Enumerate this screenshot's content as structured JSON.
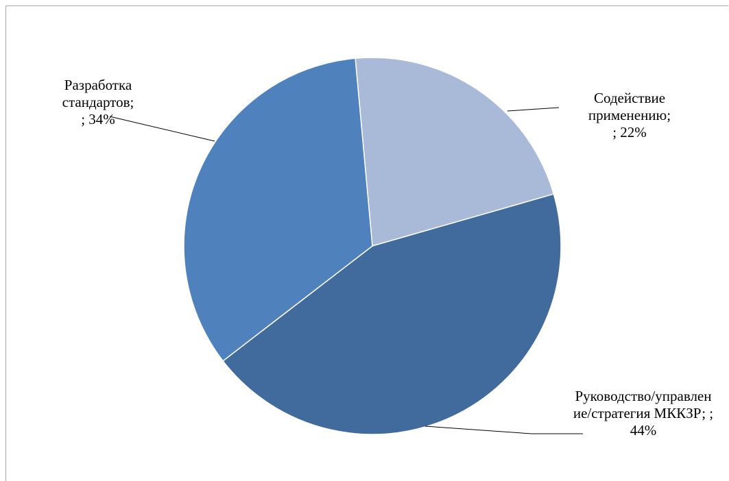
{
  "chart_data": {
    "type": "pie",
    "slices": [
      {
        "label_lines": [
          "Содействие",
          "применению;",
          "; 22%"
        ],
        "value": 22,
        "color": "#a9b9d8"
      },
      {
        "label_lines": [
          "Руководство/управлен",
          "ие/стратегия МККЗР; ;",
          "44%"
        ],
        "value": 44,
        "color": "#416b9d"
      },
      {
        "label_lines": [
          "Разработка",
          "стандартов;",
          "; 34%"
        ],
        "value": 34,
        "color": "#4f81bd"
      }
    ],
    "legend": "none",
    "slice_border_color": "#ffffff"
  }
}
